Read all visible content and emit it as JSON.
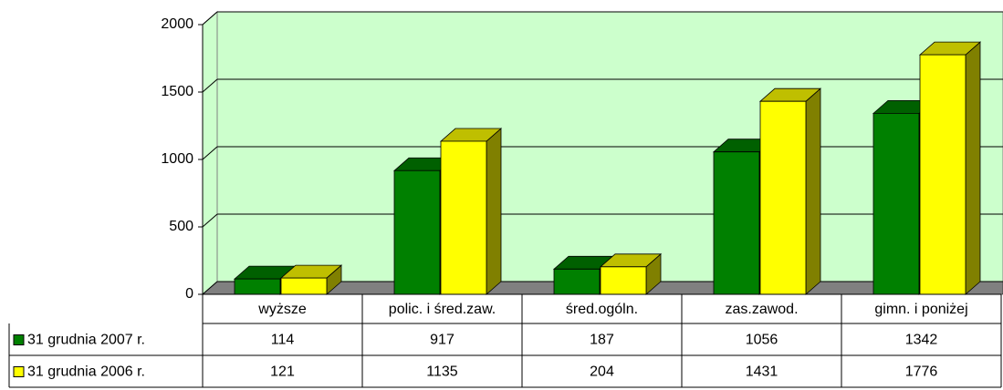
{
  "chart_data": {
    "type": "bar",
    "categories": [
      "wyższe",
      "polic. i śred.zaw.",
      "śred.ogóln.",
      "zas.zawod.",
      "gimn. i poniżej"
    ],
    "series": [
      {
        "name": "31 grudnia 2007 r.",
        "color": "#008000",
        "values": [
          114,
          917,
          187,
          1056,
          1342
        ]
      },
      {
        "name": "31 grudnia 2006 r.",
        "color": "#ffff00",
        "values": [
          121,
          1135,
          204,
          1431,
          1776
        ]
      }
    ],
    "ylim": [
      0,
      2000
    ],
    "yticks": [
      0,
      500,
      1000,
      1500,
      2000
    ],
    "grid": true,
    "background": "#ccffcc"
  }
}
